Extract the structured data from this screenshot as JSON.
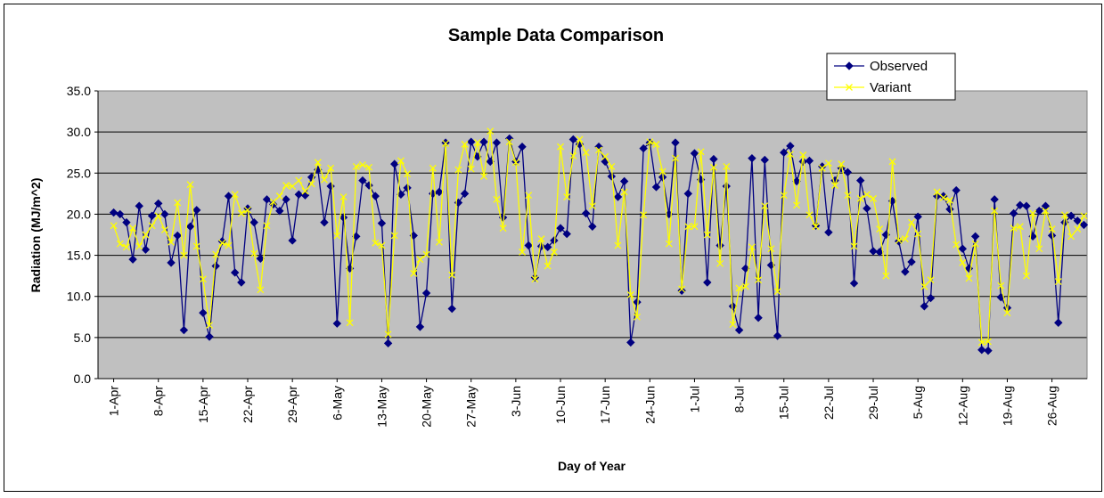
{
  "chart_data": {
    "type": "line",
    "title": "Sample Data Comparison",
    "x_label": "Day of Year",
    "y_label": "Radiation (MJ/m^2)",
    "categories": [
      "1-Apr",
      null,
      null,
      null,
      null,
      null,
      null,
      "8-Apr",
      null,
      null,
      null,
      null,
      null,
      null,
      "15-Apr",
      null,
      null,
      null,
      null,
      null,
      null,
      "22-Apr",
      null,
      null,
      null,
      null,
      null,
      null,
      "29-Apr",
      null,
      null,
      null,
      null,
      null,
      null,
      "6-May",
      null,
      null,
      null,
      null,
      null,
      null,
      "13-May",
      null,
      null,
      null,
      null,
      null,
      null,
      "20-May",
      null,
      null,
      null,
      null,
      null,
      null,
      "27-May",
      null,
      null,
      null,
      null,
      null,
      null,
      "3-Jun",
      null,
      null,
      null,
      null,
      null,
      null,
      "10-Jun",
      null,
      null,
      null,
      null,
      null,
      null,
      "17-Jun",
      null,
      null,
      null,
      null,
      null,
      null,
      "24-Jun",
      null,
      null,
      null,
      null,
      null,
      null,
      "1-Jul",
      null,
      null,
      null,
      null,
      null,
      null,
      "8-Jul",
      null,
      null,
      null,
      null,
      null,
      null,
      "15-Jul",
      null,
      null,
      null,
      null,
      null,
      null,
      "22-Jul",
      null,
      null,
      null,
      null,
      null,
      null,
      "29-Jul",
      null,
      null,
      null,
      null,
      null,
      null,
      "5-Aug",
      null,
      null,
      null,
      null,
      null,
      null,
      "12-Aug",
      null,
      null,
      null,
      null,
      null,
      null,
      "19-Aug",
      null,
      null,
      null,
      null,
      null,
      null,
      "26-Aug",
      null,
      null,
      null,
      null,
      null
    ],
    "series": [
      {
        "name": "Observed",
        "color": "#000080",
        "marker": "diamond",
        "values": [
          20.2,
          20,
          19,
          14.5,
          21,
          15.7,
          19.8,
          21.3,
          20,
          14.1,
          17.4,
          5.9,
          18.5,
          20.5,
          8,
          5.1,
          13.7,
          16.7,
          22.2,
          12.9,
          11.7,
          20.7,
          19,
          14.6,
          21.8,
          21.2,
          20.4,
          21.8,
          16.8,
          22.4,
          22.3,
          24.5,
          25.4,
          19,
          23.4,
          6.7,
          19.6,
          13.4,
          17.3,
          24.1,
          23.5,
          22.2,
          18.9,
          4.3,
          26.1,
          22.4,
          23.2,
          17.4,
          6.3,
          10.4,
          22.5,
          22.7,
          28.7,
          8.5,
          21.4,
          22.5,
          28.8,
          27,
          28.8,
          26.4,
          28.7,
          19.6,
          29.2,
          26.4,
          28.2,
          16.2,
          12.3,
          16.1,
          16,
          16.8,
          18.3,
          17.6,
          29.1,
          28.5,
          20.1,
          18.5,
          28.2,
          26.4,
          24.6,
          22.1,
          24,
          4.4,
          9.3,
          28,
          28.7,
          23.3,
          24.5,
          20,
          28.7,
          10.7,
          22.5,
          27.4,
          24.2,
          11.7,
          26.7,
          16.2,
          23.4,
          8.8,
          5.9,
          13.4,
          26.8,
          7.4,
          26.6,
          13.8,
          5.2,
          27.5,
          28.3,
          24,
          26.4,
          26.5,
          18.6,
          25.8,
          17.8,
          24.1,
          25.6,
          25.1,
          11.6,
          24.1,
          20.7,
          15.5,
          15.4,
          17.5,
          21.6,
          16.7,
          13,
          14.2,
          19.7,
          8.8,
          9.8,
          22.2,
          22.2,
          20.6,
          22.9,
          15.8,
          13.4,
          17.3,
          3.5,
          3.4,
          21.8,
          9.9,
          8.6,
          20.1,
          21.1,
          21,
          17.3,
          20.4,
          21,
          17.4,
          6.8,
          19,
          19.8,
          19.2,
          18.7
        ]
      },
      {
        "name": "Variant",
        "color": "#ffff00",
        "marker": "x",
        "values": [
          18.6,
          16.4,
          16,
          18.3,
          16.1,
          17.5,
          18.6,
          19.8,
          18.1,
          16.6,
          21.4,
          15,
          23.6,
          16.1,
          12.1,
          6.5,
          15.1,
          16.5,
          16.2,
          22.4,
          20.1,
          20.5,
          15.2,
          10.8,
          18.6,
          21.5,
          22.2,
          23.5,
          23.4,
          24.1,
          22.8,
          23.7,
          26.3,
          24.2,
          25.6,
          17.4,
          22.1,
          6.8,
          25.8,
          26,
          25.7,
          16.5,
          16.2,
          5.4,
          17.4,
          26.5,
          24.9,
          12.8,
          14.5,
          15.1,
          25.6,
          16.6,
          28.6,
          12.6,
          25.4,
          28.5,
          25.5,
          28.7,
          24.6,
          30.1,
          21.8,
          18.3,
          28.8,
          26.3,
          15.4,
          22.3,
          12.1,
          17,
          13.7,
          15.4,
          28.2,
          22.1,
          27.1,
          29.1,
          27.5,
          21,
          27.8,
          27,
          25.8,
          16.2,
          22.7,
          10.2,
          7.5,
          19.9,
          28.8,
          28.5,
          25.2,
          16.4,
          26.8,
          10.9,
          18.5,
          18.5,
          27.6,
          17.5,
          25.7,
          14,
          25.8,
          6.6,
          11,
          11.2,
          16,
          12,
          21,
          15.8,
          10.6,
          22.3,
          27.3,
          21.1,
          27.2,
          19.9,
          18.5,
          25.6,
          26.2,
          23.5,
          26.1,
          22.3,
          16.1,
          21.9,
          22.4,
          21.9,
          18.2,
          12.5,
          26.4,
          16.8,
          17,
          19,
          17.6,
          11.2,
          12,
          22.7,
          22,
          21.7,
          16.3,
          14.1,
          12.2,
          16.4,
          4.4,
          4.5,
          20.4,
          11.3,
          8,
          18.3,
          18.5,
          12.5,
          20.1,
          15.8,
          20.4,
          18.2,
          11.8,
          19.9,
          17.3,
          18.2,
          19.8
        ]
      }
    ],
    "ylim": [
      0,
      35
    ],
    "yticks": [
      {
        "value": 0,
        "label": "0.0"
      },
      {
        "value": 5,
        "label": "5.0"
      },
      {
        "value": 10,
        "label": "10.0"
      },
      {
        "value": 15,
        "label": "15.0"
      },
      {
        "value": 20,
        "label": "20.0"
      },
      {
        "value": 25,
        "label": "25.0"
      },
      {
        "value": 30,
        "label": "30.0"
      },
      {
        "value": 35,
        "label": "35.0"
      }
    ],
    "grid": true,
    "legend": "top-right",
    "plot_background": "#c0c0c0"
  }
}
